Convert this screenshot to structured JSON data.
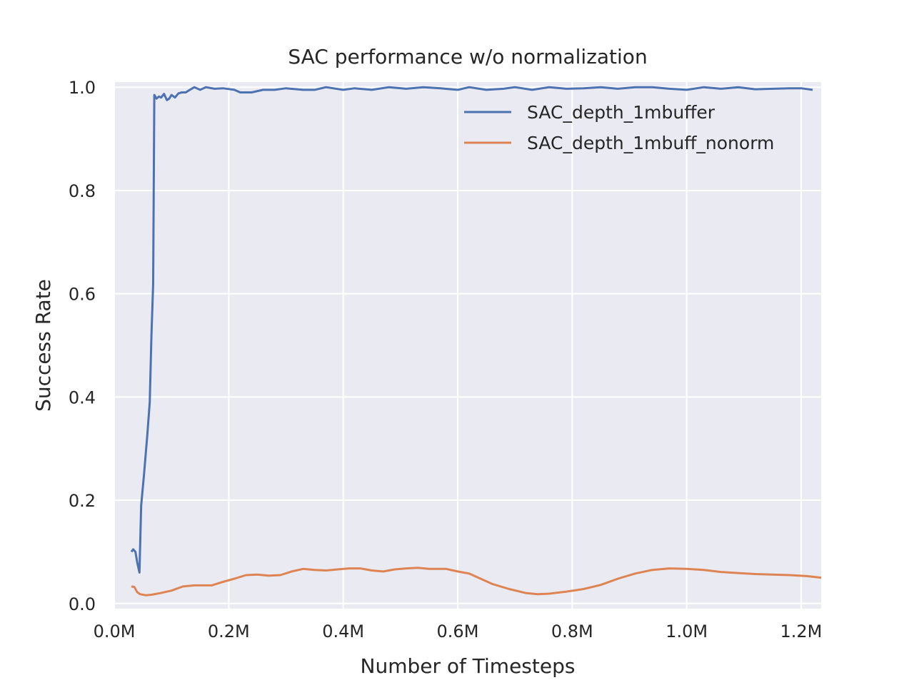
{
  "chart_data": {
    "type": "line",
    "title": "SAC performance w/o normalization",
    "xlabel": "Number of Timesteps",
    "ylabel": "Success Rate",
    "xlim": [
      0,
      1235000
    ],
    "ylim": [
      -0.01,
      1.01
    ],
    "x_ticks": [
      0,
      200000,
      400000,
      600000,
      800000,
      1000000,
      1200000
    ],
    "x_tick_labels": [
      "0.0M",
      "0.2M",
      "0.4M",
      "0.6M",
      "0.8M",
      "1.0M",
      "1.2M"
    ],
    "y_ticks": [
      0.0,
      0.2,
      0.4,
      0.6,
      0.8,
      1.0
    ],
    "y_tick_labels": [
      "0.0",
      "0.2",
      "0.4",
      "0.6",
      "0.8",
      "1.0"
    ],
    "grid": true,
    "legend_position": "top-right",
    "colors": {
      "background": "#eaeaf2",
      "grid": "#ffffff"
    },
    "series": [
      {
        "name": "SAC_depth_1mbuffer",
        "color": "#4c72b0",
        "points": [
          [
            30000,
            0.1
          ],
          [
            33000,
            0.105
          ],
          [
            37000,
            0.1
          ],
          [
            40000,
            0.08
          ],
          [
            44000,
            0.06
          ],
          [
            47000,
            0.19
          ],
          [
            52000,
            0.25
          ],
          [
            58000,
            0.33
          ],
          [
            62000,
            0.39
          ],
          [
            65000,
            0.52
          ],
          [
            68000,
            0.62
          ],
          [
            70000,
            0.985
          ],
          [
            74000,
            0.978
          ],
          [
            78000,
            0.982
          ],
          [
            82000,
            0.98
          ],
          [
            87000,
            0.987
          ],
          [
            92000,
            0.975
          ],
          [
            96000,
            0.978
          ],
          [
            100000,
            0.985
          ],
          [
            106000,
            0.98
          ],
          [
            112000,
            0.988
          ],
          [
            118000,
            0.99
          ],
          [
            125000,
            0.99
          ],
          [
            132000,
            0.995
          ],
          [
            140000,
            1.0
          ],
          [
            150000,
            0.995
          ],
          [
            160000,
            1.0
          ],
          [
            175000,
            0.997
          ],
          [
            190000,
            0.998
          ],
          [
            210000,
            0.995
          ],
          [
            220000,
            0.99
          ],
          [
            240000,
            0.99
          ],
          [
            260000,
            0.995
          ],
          [
            280000,
            0.995
          ],
          [
            300000,
            0.998
          ],
          [
            330000,
            0.995
          ],
          [
            350000,
            0.995
          ],
          [
            370000,
            1.0
          ],
          [
            400000,
            0.995
          ],
          [
            420000,
            0.998
          ],
          [
            450000,
            0.995
          ],
          [
            480000,
            1.0
          ],
          [
            510000,
            0.997
          ],
          [
            540000,
            1.0
          ],
          [
            570000,
            0.998
          ],
          [
            600000,
            0.995
          ],
          [
            620000,
            1.0
          ],
          [
            650000,
            0.995
          ],
          [
            680000,
            0.997
          ],
          [
            700000,
            1.0
          ],
          [
            730000,
            0.995
          ],
          [
            760000,
            1.0
          ],
          [
            790000,
            0.997
          ],
          [
            820000,
            0.998
          ],
          [
            850000,
            1.0
          ],
          [
            880000,
            0.997
          ],
          [
            910000,
            1.0
          ],
          [
            940000,
            1.0
          ],
          [
            970000,
            0.997
          ],
          [
            1000000,
            0.995
          ],
          [
            1030000,
            1.0
          ],
          [
            1060000,
            0.997
          ],
          [
            1090000,
            1.0
          ],
          [
            1120000,
            0.996
          ],
          [
            1150000,
            0.997
          ],
          [
            1180000,
            0.998
          ],
          [
            1200000,
            0.998
          ],
          [
            1220000,
            0.995
          ]
        ]
      },
      {
        "name": "SAC_depth_1mbuff_nonorm",
        "color": "#dd8452",
        "points": [
          [
            30000,
            0.033
          ],
          [
            35000,
            0.032
          ],
          [
            40000,
            0.022
          ],
          [
            45000,
            0.018
          ],
          [
            55000,
            0.016
          ],
          [
            65000,
            0.017
          ],
          [
            80000,
            0.02
          ],
          [
            100000,
            0.025
          ],
          [
            120000,
            0.033
          ],
          [
            140000,
            0.035
          ],
          [
            170000,
            0.035
          ],
          [
            190000,
            0.042
          ],
          [
            210000,
            0.048
          ],
          [
            230000,
            0.055
          ],
          [
            250000,
            0.056
          ],
          [
            270000,
            0.054
          ],
          [
            290000,
            0.055
          ],
          [
            310000,
            0.062
          ],
          [
            330000,
            0.067
          ],
          [
            350000,
            0.065
          ],
          [
            370000,
            0.064
          ],
          [
            390000,
            0.066
          ],
          [
            410000,
            0.068
          ],
          [
            430000,
            0.068
          ],
          [
            450000,
            0.064
          ],
          [
            470000,
            0.062
          ],
          [
            490000,
            0.066
          ],
          [
            510000,
            0.068
          ],
          [
            530000,
            0.069
          ],
          [
            550000,
            0.067
          ],
          [
            580000,
            0.067
          ],
          [
            600000,
            0.062
          ],
          [
            620000,
            0.058
          ],
          [
            640000,
            0.048
          ],
          [
            660000,
            0.038
          ],
          [
            690000,
            0.028
          ],
          [
            720000,
            0.02
          ],
          [
            740000,
            0.018
          ],
          [
            760000,
            0.019
          ],
          [
            790000,
            0.023
          ],
          [
            820000,
            0.028
          ],
          [
            850000,
            0.036
          ],
          [
            880000,
            0.048
          ],
          [
            910000,
            0.058
          ],
          [
            940000,
            0.065
          ],
          [
            970000,
            0.068
          ],
          [
            1000000,
            0.067
          ],
          [
            1030000,
            0.065
          ],
          [
            1060000,
            0.061
          ],
          [
            1090000,
            0.059
          ],
          [
            1120000,
            0.057
          ],
          [
            1150000,
            0.056
          ],
          [
            1180000,
            0.055
          ],
          [
            1210000,
            0.053
          ],
          [
            1235000,
            0.05
          ]
        ]
      }
    ]
  }
}
